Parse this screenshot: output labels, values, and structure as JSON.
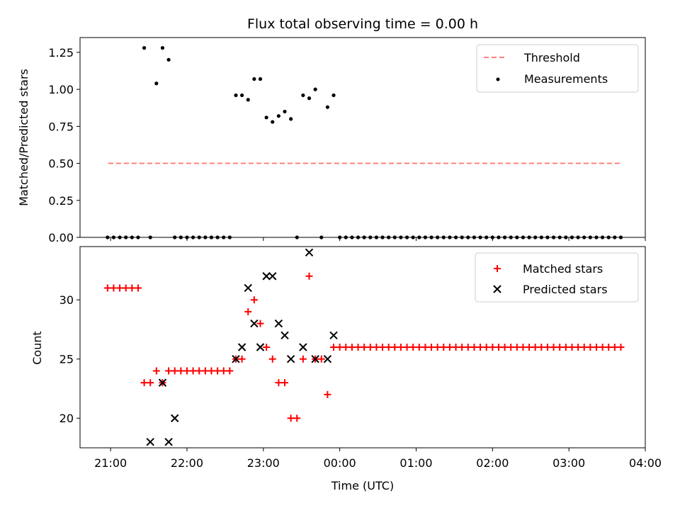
{
  "chart_data": [
    {
      "type": "scatter",
      "title": "Flux total observing time = 0.00 h",
      "xlabel": "",
      "ylabel": "Matched/Predicted stars",
      "ylim": [
        0,
        1.35
      ],
      "yticks": [
        {
          "value": 0,
          "label": "0.00"
        },
        {
          "value": 0.25,
          "label": "0.25"
        },
        {
          "value": 0.5,
          "label": "0.50"
        },
        {
          "value": 0.75,
          "label": "0.75"
        },
        {
          "value": 1.0,
          "label": "1.00"
        },
        {
          "value": 1.25,
          "label": "1.25"
        }
      ],
      "legend": {
        "placement": "top-right",
        "entries": [
          {
            "label": "Threshold"
          },
          {
            "label": "Measurements"
          }
        ]
      },
      "grid": false,
      "threshold": {
        "name": "Threshold",
        "value": 0.5,
        "x_range": [
          -3.03,
          3.7
        ],
        "color": "#ff8080"
      },
      "series": [
        {
          "name": "Measurements",
          "color": "#000000",
          "marker": "dot",
          "x": [
            -3.04,
            -2.96,
            -2.88,
            -2.8,
            -2.72,
            -2.64,
            -2.56,
            -2.48,
            -2.4,
            -2.32,
            -2.24,
            -2.16,
            -2.08,
            -2.0,
            -1.92,
            -1.84,
            -1.76,
            -1.68,
            -1.6,
            -1.52,
            -1.44,
            -1.36,
            -1.28,
            -1.2,
            -1.12,
            -1.04,
            -0.96,
            -0.88,
            -0.8,
            -0.72,
            -0.64,
            -0.56,
            -0.48,
            -0.4,
            -0.32,
            -0.24,
            -0.16,
            -0.08,
            0.0,
            0.08,
            0.16,
            0.24,
            0.32,
            0.4,
            0.48,
            0.56,
            0.64,
            0.72,
            0.8,
            0.88,
            0.96,
            1.04,
            1.12,
            1.2,
            1.28,
            1.36,
            1.44,
            1.52,
            1.6,
            1.68,
            1.76,
            1.84,
            1.92,
            2.0,
            2.08,
            2.16,
            2.24,
            2.32,
            2.4,
            2.48,
            2.56,
            2.64,
            2.72,
            2.8,
            2.88,
            2.96,
            3.04,
            3.12,
            3.2,
            3.28,
            3.36,
            3.44,
            3.52,
            3.6,
            3.68
          ],
          "y": [
            0,
            0,
            0,
            0,
            0,
            0,
            1.28,
            0,
            1.04,
            1.28,
            1.2,
            0,
            0,
            0,
            0,
            0,
            0,
            0,
            0,
            0,
            0,
            0.96,
            0.96,
            0.93,
            1.07,
            1.07,
            0.81,
            0.78,
            0.82,
            0.85,
            0.8,
            0,
            0.96,
            0.94,
            1.0,
            0,
            0.88,
            0.96,
            0,
            0,
            0,
            0,
            0,
            0,
            0,
            0,
            0,
            0,
            0,
            0,
            0,
            0,
            0,
            0,
            0,
            0,
            0,
            0,
            0,
            0,
            0,
            0,
            0,
            0,
            0,
            0,
            0,
            0,
            0,
            0,
            0,
            0,
            0,
            0,
            0,
            0,
            0,
            0,
            0,
            0,
            0,
            0,
            0,
            0,
            0
          ]
        }
      ]
    },
    {
      "type": "scatter",
      "title": "",
      "xlabel": "Time (UTC)",
      "ylabel": "Count",
      "ylim": [
        17.5,
        34.5
      ],
      "yticks": [
        {
          "value": 20,
          "label": "20"
        },
        {
          "value": 25,
          "label": "25"
        },
        {
          "value": 30,
          "label": "30"
        }
      ],
      "xlim": [
        -3.4,
        4.0
      ],
      "xticks": [
        {
          "value": -3,
          "label": "21:00"
        },
        {
          "value": -2,
          "label": "22:00"
        },
        {
          "value": -1,
          "label": "23:00"
        },
        {
          "value": 0,
          "label": "00:00"
        },
        {
          "value": 1,
          "label": "01:00"
        },
        {
          "value": 2,
          "label": "02:00"
        },
        {
          "value": 3,
          "label": "03:00"
        },
        {
          "value": 4,
          "label": "04:00"
        }
      ],
      "legend": {
        "placement": "top-right",
        "entries": [
          {
            "label": "Matched stars"
          },
          {
            "label": "Predicted stars"
          }
        ]
      },
      "grid": false,
      "series": [
        {
          "name": "Matched stars",
          "color": "#ff0000",
          "marker": "plus",
          "x": [
            -3.04,
            -2.96,
            -2.88,
            -2.8,
            -2.72,
            -2.64,
            -2.56,
            -2.48,
            -2.4,
            -2.32,
            -2.24,
            -2.16,
            -2.08,
            -2.0,
            -1.92,
            -1.84,
            -1.76,
            -1.68,
            -1.6,
            -1.52,
            -1.44,
            -1.36,
            -1.28,
            -1.2,
            -1.12,
            -1.04,
            -0.96,
            -0.88,
            -0.8,
            -0.72,
            -0.64,
            -0.56,
            -0.48,
            -0.4,
            -0.32,
            -0.24,
            -0.16,
            -0.08,
            0.0,
            0.08,
            0.16,
            0.24,
            0.32,
            0.4,
            0.48,
            0.56,
            0.64,
            0.72,
            0.8,
            0.88,
            0.96,
            1.04,
            1.12,
            1.2,
            1.28,
            1.36,
            1.44,
            1.52,
            1.6,
            1.68,
            1.76,
            1.84,
            1.92,
            2.0,
            2.08,
            2.16,
            2.24,
            2.32,
            2.4,
            2.48,
            2.56,
            2.64,
            2.72,
            2.8,
            2.88,
            2.96,
            3.04,
            3.12,
            3.2,
            3.28,
            3.36,
            3.44,
            3.52,
            3.6,
            3.68
          ],
          "y": [
            31,
            31,
            31,
            31,
            31,
            31,
            23,
            23,
            24,
            23,
            24,
            24,
            24,
            24,
            24,
            24,
            24,
            24,
            24,
            24,
            24,
            25,
            25,
            29,
            30,
            28,
            26,
            25,
            23,
            23,
            20,
            20,
            25,
            32,
            25,
            25,
            22,
            26,
            26,
            26,
            26,
            26,
            26,
            26,
            26,
            26,
            26,
            26,
            26,
            26,
            26,
            26,
            26,
            26,
            26,
            26,
            26,
            26,
            26,
            26,
            26,
            26,
            26,
            26,
            26,
            26,
            26,
            26,
            26,
            26,
            26,
            26,
            26,
            26,
            26,
            26,
            26,
            26,
            26,
            26,
            26,
            26,
            26,
            26,
            26
          ]
        },
        {
          "name": "Predicted stars",
          "color": "#000000",
          "marker": "x",
          "x": [
            -2.48,
            -2.32,
            -2.24,
            -2.16,
            -1.36,
            -1.28,
            -1.2,
            -1.12,
            -1.04,
            -0.96,
            -0.88,
            -0.8,
            -0.72,
            -0.64,
            -0.48,
            -0.4,
            -0.32,
            -0.16,
            -0.08
          ],
          "y": [
            18,
            23,
            18,
            20,
            25,
            26,
            31,
            28,
            26,
            32,
            32,
            28,
            27,
            25,
            26,
            34,
            25,
            25,
            27
          ]
        }
      ]
    }
  ]
}
